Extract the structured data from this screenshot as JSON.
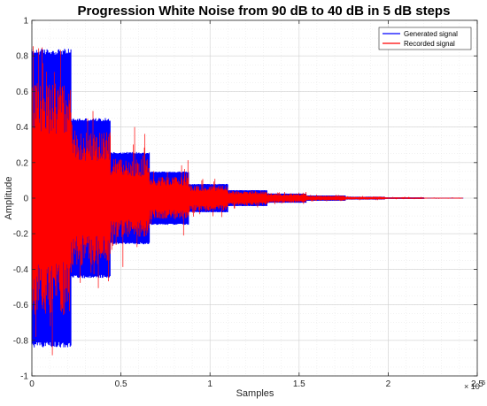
{
  "chart_data": {
    "type": "line",
    "title": "Progression White Noise from 90 dB to 40 dB in 5 dB steps",
    "xlabel": "Samples",
    "ylabel": "Amplitude",
    "xlim": [
      0,
      2500000
    ],
    "ylim": [
      -1,
      1
    ],
    "x_ticks": [
      0,
      500000,
      1000000,
      1500000,
      2000000,
      2500000
    ],
    "x_tick_labels": [
      "0",
      "0.5",
      "1",
      "1.5",
      "2",
      "2.5"
    ],
    "x_exponent_label": "× 10",
    "x_exponent_power": "6",
    "y_ticks": [
      -1,
      -0.8,
      -0.6,
      -0.4,
      -0.2,
      0,
      0.2,
      0.4,
      0.6,
      0.8,
      1
    ],
    "y_tick_labels": [
      "-1",
      "-0.8",
      "-0.6",
      "-0.4",
      "-0.2",
      "0",
      "0.2",
      "0.4",
      "0.6",
      "0.8",
      "1"
    ],
    "grid": true,
    "minor_grid": true,
    "legend_position": "top-right",
    "series": [
      {
        "name": "Generated signal",
        "color": "#0000ff",
        "segments": [
          {
            "x_start": 0,
            "x_end": 220000,
            "amplitude": 0.84
          },
          {
            "x_start": 220000,
            "x_end": 440000,
            "amplitude": 0.45
          },
          {
            "x_start": 440000,
            "x_end": 660000,
            "amplitude": 0.26
          },
          {
            "x_start": 660000,
            "x_end": 880000,
            "amplitude": 0.15
          },
          {
            "x_start": 880000,
            "x_end": 1100000,
            "amplitude": 0.08
          },
          {
            "x_start": 1100000,
            "x_end": 1320000,
            "amplitude": 0.045
          },
          {
            "x_start": 1320000,
            "x_end": 1540000,
            "amplitude": 0.026
          },
          {
            "x_start": 1540000,
            "x_end": 1760000,
            "amplitude": 0.015
          },
          {
            "x_start": 1760000,
            "x_end": 1980000,
            "amplitude": 0.008
          },
          {
            "x_start": 1980000,
            "x_end": 2200000,
            "amplitude": 0.0045
          },
          {
            "x_start": 2200000,
            "x_end": 2420000,
            "amplitude": 0.0026
          }
        ]
      },
      {
        "name": "Recorded signal",
        "color": "#ff0000",
        "segments": [
          {
            "x_start": 0,
            "x_end": 220000,
            "amplitude": 0.65,
            "peak": 0.89
          },
          {
            "x_start": 220000,
            "x_end": 440000,
            "amplitude": 0.38,
            "peak": 0.52
          },
          {
            "x_start": 440000,
            "x_end": 660000,
            "amplitude": 0.22,
            "peak": 0.4
          },
          {
            "x_start": 660000,
            "x_end": 880000,
            "amplitude": 0.12,
            "peak": 0.22
          },
          {
            "x_start": 880000,
            "x_end": 1100000,
            "amplitude": 0.07,
            "peak": 0.11
          },
          {
            "x_start": 1100000,
            "x_end": 1320000,
            "amplitude": 0.04,
            "peak": 0.06
          },
          {
            "x_start": 1320000,
            "x_end": 1540000,
            "amplitude": 0.025,
            "peak": 0.035
          },
          {
            "x_start": 1540000,
            "x_end": 1760000,
            "amplitude": 0.014,
            "peak": 0.02
          },
          {
            "x_start": 1760000,
            "x_end": 1980000,
            "amplitude": 0.008,
            "peak": 0.012
          },
          {
            "x_start": 1980000,
            "x_end": 2200000,
            "amplitude": 0.0045,
            "peak": 0.007
          },
          {
            "x_start": 2200000,
            "x_end": 2420000,
            "amplitude": 0.0026,
            "peak": 0.004
          }
        ]
      }
    ]
  }
}
